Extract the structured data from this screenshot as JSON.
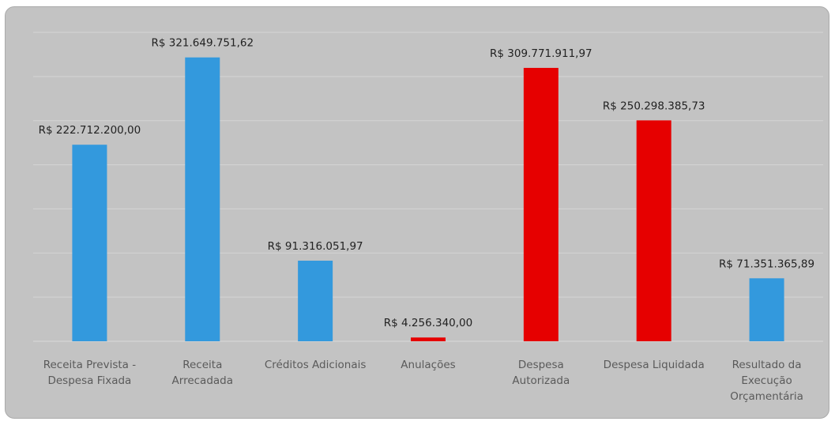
{
  "chart_data": {
    "type": "bar",
    "categories": [
      "Receita Prevista - Despesa Fixada",
      "Receita Arrecadada",
      "Créditos Adicionais",
      "Anulações",
      "Despesa Autorizada",
      "Despesa Liquidada",
      "Resultado da Execução Orçamentária"
    ],
    "values": [
      222712200.0,
      321649751.62,
      91316051.97,
      4256340.0,
      309771911.97,
      250298385.73,
      71351365.89
    ],
    "value_labels": [
      "R$ 222.712.200,00",
      "R$ 321.649.751,62",
      "R$ 91.316.051,97",
      "R$ 4.256.340,00",
      "R$ 309.771.911,97",
      "R$ 250.298.385,73",
      "R$ 71.351.365,89"
    ],
    "colors": [
      "#3399dd",
      "#3399dd",
      "#3399dd",
      "#e60000",
      "#e60000",
      "#e60000",
      "#3399dd"
    ],
    "ylim": [
      0,
      350000000
    ],
    "yticks": [
      0,
      50000000,
      100000000,
      150000000,
      200000000,
      250000000,
      300000000,
      350000000
    ],
    "grid": true
  }
}
